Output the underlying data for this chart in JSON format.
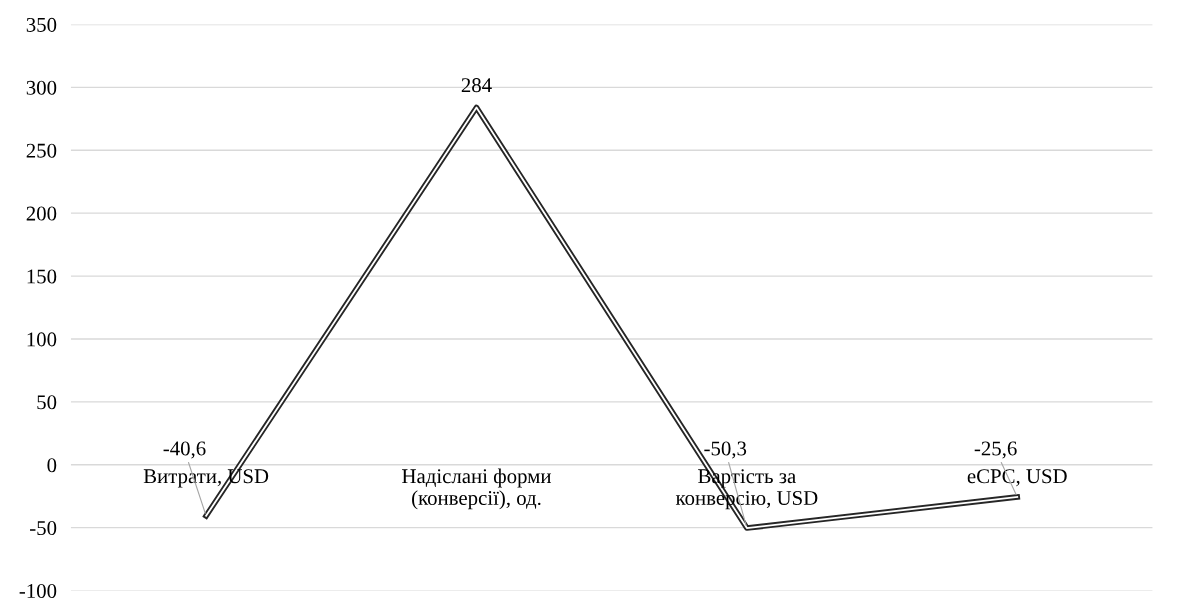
{
  "chart_data": {
    "type": "line",
    "categories": [
      "Витрати, USD",
      "Надіслані форми\n(конверсії), од.",
      "Вартість за\nконверсію, USD",
      "eCPC, USD"
    ],
    "series": [
      {
        "color": "#262626",
        "values": [
          -40.6,
          284,
          -50.3,
          -25.6
        ],
        "value_labels": [
          "-40,6",
          "284",
          "-50,3",
          "-25,6"
        ]
      }
    ],
    "ylim": [
      -100,
      350
    ],
    "yticks": [
      -100,
      -50,
      0,
      50,
      100,
      150,
      200,
      250,
      300,
      350
    ],
    "grid": "y",
    "legend": false,
    "marker": "none",
    "line_style": "solid"
  }
}
